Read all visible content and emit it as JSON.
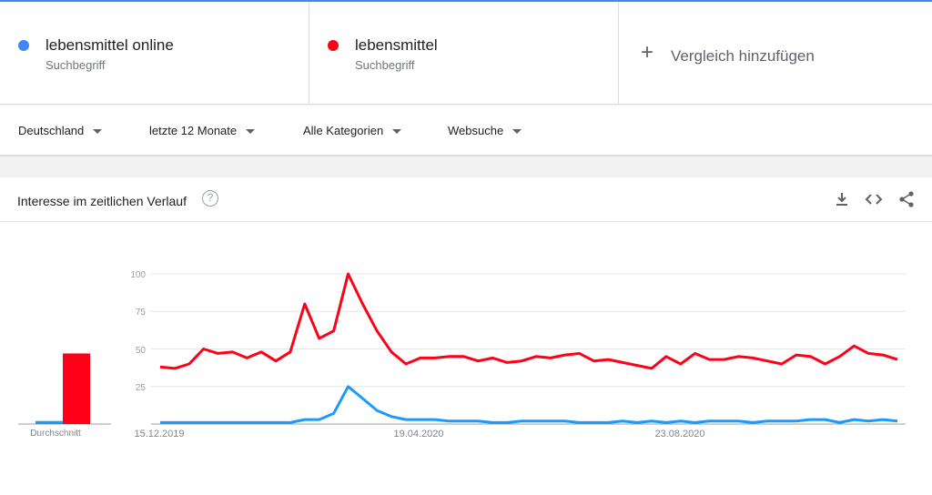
{
  "terms": [
    {
      "label": "lebensmittel online",
      "type": "Suchbegriff",
      "color": "#4285f4"
    },
    {
      "label": "lebensmittel",
      "type": "Suchbegriff",
      "color": "#ff0000"
    }
  ],
  "add_compare": "Vergleich hinzufügen",
  "filters": {
    "region": "Deutschland",
    "time": "letzte 12 Monate",
    "category": "Alle Kategorien",
    "search_type": "Websuche"
  },
  "panel": {
    "title": "Interesse im zeitlichen Verlauf",
    "help": "?",
    "icons": [
      "download-icon",
      "embed-icon",
      "share-icon"
    ]
  },
  "chart_data": {
    "type": "line",
    "title": "",
    "yticks": [
      25,
      50,
      75,
      100
    ],
    "ylim": [
      0,
      100
    ],
    "grid": true,
    "xtick_labels": [
      "15.12.2019",
      "19.04.2020",
      "23.08.2020"
    ],
    "average_label": "Durchschnitt",
    "averages": [
      2,
      47
    ],
    "series": [
      {
        "name": "lebensmittel online",
        "color": "#1a9bfc",
        "values": [
          1,
          1,
          1,
          1,
          1,
          1,
          1,
          1,
          1,
          1,
          3,
          3,
          7,
          25,
          17,
          9,
          5,
          3,
          3,
          3,
          2,
          2,
          2,
          1,
          1,
          2,
          2,
          2,
          2,
          1,
          1,
          1,
          2,
          1,
          2,
          1,
          2,
          1,
          2,
          2,
          2,
          1,
          2,
          2,
          2,
          3,
          3,
          1,
          3,
          2,
          3,
          2
        ]
      },
      {
        "name": "lebensmittel",
        "color": "#ff0019",
        "values": [
          38,
          37,
          40,
          50,
          47,
          48,
          44,
          48,
          42,
          48,
          80,
          57,
          62,
          100,
          80,
          62,
          48,
          40,
          44,
          44,
          45,
          45,
          42,
          44,
          41,
          42,
          45,
          44,
          46,
          47,
          42,
          43,
          41,
          39,
          37,
          45,
          40,
          47,
          43,
          43,
          45,
          44,
          42,
          40,
          46,
          45,
          40,
          45,
          52,
          47,
          46,
          43
        ]
      }
    ]
  }
}
